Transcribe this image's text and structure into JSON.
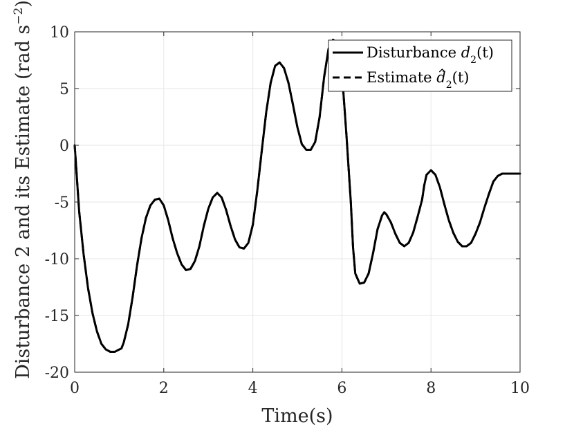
{
  "chart_data": {
    "type": "line",
    "xlabel": "Time(s)",
    "ylabel": "Disturbance 2 and its Estimate (rad s",
    "ylabel_sup": "−2",
    "ylabel_tail": ")",
    "xlim": [
      0,
      10
    ],
    "ylim": [
      -20,
      10
    ],
    "xticks": [
      0,
      2,
      4,
      6,
      8,
      10
    ],
    "yticks": [
      -20,
      -15,
      -10,
      -5,
      0,
      5,
      10
    ],
    "xtick_labels": [
      "0",
      "2",
      "4",
      "6",
      "8",
      "10"
    ],
    "ytick_labels": [
      "-20",
      "-15",
      "-10",
      "-5",
      "0",
      "5",
      "10"
    ],
    "grid": true,
    "legend_position": "top-right",
    "legend": [
      {
        "text": "Disturbance ",
        "sym": "d",
        "sub": "2",
        "tail": "(t)",
        "hat": false
      },
      {
        "text": "Estimate ",
        "sym": "d",
        "sub": "2",
        "tail": "(t)",
        "hat": true
      }
    ],
    "series": [
      {
        "name": "Disturbance d2(t)",
        "style": "solid",
        "color": "#000000",
        "x": [
          0,
          0.1,
          0.2,
          0.3,
          0.4,
          0.5,
          0.6,
          0.7,
          0.8,
          0.9,
          1.0,
          1.05,
          1.1,
          1.2,
          1.3,
          1.4,
          1.5,
          1.6,
          1.7,
          1.8,
          1.9,
          2.0,
          2.1,
          2.2,
          2.3,
          2.4,
          2.5,
          2.6,
          2.7,
          2.8,
          2.9,
          3.0,
          3.1,
          3.2,
          3.3,
          3.4,
          3.5,
          3.6,
          3.7,
          3.8,
          3.9,
          4.0,
          4.1,
          4.2,
          4.3,
          4.4,
          4.5,
          4.6,
          4.7,
          4.8,
          4.9,
          5.0,
          5.1,
          5.2,
          5.3,
          5.4,
          5.5,
          5.6,
          5.7,
          5.8,
          5.9,
          6.0,
          6.1,
          6.2,
          6.25,
          6.3,
          6.4,
          6.5,
          6.6,
          6.7,
          6.8,
          6.9,
          6.95,
          7.0,
          7.1,
          7.2,
          7.3,
          7.4,
          7.5,
          7.6,
          7.7,
          7.8,
          7.85,
          7.9,
          8.0,
          8.1,
          8.2,
          8.3,
          8.4,
          8.5,
          8.6,
          8.7,
          8.8,
          8.9,
          9.0,
          9.1,
          9.2,
          9.3,
          9.4,
          9.5,
          9.6,
          9.7,
          9.8,
          9.9,
          10.0
        ],
        "y": [
          0,
          -5.8,
          -9.6,
          -12.6,
          -14.8,
          -16.4,
          -17.5,
          -18.0,
          -18.2,
          -18.2,
          -18.0,
          -17.9,
          -17.4,
          -15.8,
          -13.4,
          -10.6,
          -8.2,
          -6.4,
          -5.3,
          -4.8,
          -4.7,
          -5.3,
          -6.6,
          -8.2,
          -9.5,
          -10.5,
          -11.0,
          -10.9,
          -10.2,
          -8.9,
          -7.1,
          -5.6,
          -4.6,
          -4.2,
          -4.6,
          -5.7,
          -7.1,
          -8.3,
          -9.0,
          -9.1,
          -8.6,
          -7.0,
          -4.0,
          -0.5,
          2.9,
          5.5,
          7.0,
          7.3,
          6.8,
          5.5,
          3.6,
          1.6,
          0.1,
          -0.4,
          -0.4,
          0.3,
          2.5,
          6.0,
          8.5,
          9.3,
          9.0,
          6.5,
          1.0,
          -5.0,
          -9.0,
          -11.3,
          -12.2,
          -12.1,
          -11.3,
          -9.5,
          -7.4,
          -6.2,
          -5.9,
          -6.1,
          -6.8,
          -7.8,
          -8.6,
          -8.9,
          -8.6,
          -7.7,
          -6.3,
          -4.8,
          -3.5,
          -2.6,
          -2.2,
          -2.6,
          -3.7,
          -5.2,
          -6.6,
          -7.7,
          -8.5,
          -8.9,
          -8.9,
          -8.6,
          -7.8,
          -6.8,
          -5.5,
          -4.3,
          -3.2,
          -2.7,
          -2.5,
          -2.5,
          -2.5,
          -2.5,
          -2.5
        ]
      },
      {
        "name": "Estimate d̂2(t)",
        "style": "dashed",
        "color": "#000000",
        "x": [
          0,
          0.1,
          0.2,
          0.3,
          0.4,
          0.5,
          0.6,
          0.7,
          0.8,
          0.9,
          1.0,
          1.05,
          1.1,
          1.2,
          1.3,
          1.4,
          1.5,
          1.6,
          1.7,
          1.8,
          1.9,
          2.0,
          2.1,
          2.2,
          2.3,
          2.4,
          2.5,
          2.6,
          2.7,
          2.8,
          2.9,
          3.0,
          3.1,
          3.2,
          3.3,
          3.4,
          3.5,
          3.6,
          3.7,
          3.8,
          3.9,
          4.0,
          4.1,
          4.2,
          4.3,
          4.4,
          4.5,
          4.6,
          4.7,
          4.8,
          4.9,
          5.0,
          5.1,
          5.2,
          5.3,
          5.4,
          5.5,
          5.6,
          5.7,
          5.8,
          5.9,
          6.0,
          6.1,
          6.2,
          6.25,
          6.3,
          6.4,
          6.5,
          6.6,
          6.7,
          6.8,
          6.9,
          6.95,
          7.0,
          7.1,
          7.2,
          7.3,
          7.4,
          7.5,
          7.6,
          7.7,
          7.8,
          7.85,
          7.9,
          8.0,
          8.1,
          8.2,
          8.3,
          8.4,
          8.5,
          8.6,
          8.7,
          8.8,
          8.9,
          9.0,
          9.1,
          9.2,
          9.3,
          9.4,
          9.5,
          9.6,
          9.7,
          9.8,
          9.9,
          10.0
        ],
        "y": [
          0,
          -5.8,
          -9.6,
          -12.6,
          -14.8,
          -16.4,
          -17.5,
          -18.0,
          -18.2,
          -18.2,
          -18.0,
          -17.9,
          -17.4,
          -15.8,
          -13.4,
          -10.6,
          -8.2,
          -6.4,
          -5.3,
          -4.8,
          -4.7,
          -5.3,
          -6.6,
          -8.2,
          -9.5,
          -10.5,
          -11.0,
          -10.9,
          -10.2,
          -8.9,
          -7.1,
          -5.6,
          -4.6,
          -4.2,
          -4.6,
          -5.7,
          -7.1,
          -8.3,
          -9.0,
          -9.1,
          -8.6,
          -7.0,
          -4.0,
          -0.5,
          2.9,
          5.5,
          7.0,
          7.3,
          6.8,
          5.5,
          3.6,
          1.6,
          0.1,
          -0.4,
          -0.4,
          0.3,
          2.5,
          6.0,
          8.5,
          9.3,
          9.0,
          6.5,
          1.0,
          -5.0,
          -9.0,
          -11.3,
          -12.2,
          -12.1,
          -11.3,
          -9.5,
          -7.4,
          -6.2,
          -5.9,
          -6.1,
          -6.8,
          -7.8,
          -8.6,
          -8.9,
          -8.6,
          -7.7,
          -6.3,
          -4.8,
          -3.5,
          -2.6,
          -2.2,
          -2.6,
          -3.7,
          -5.2,
          -6.6,
          -7.7,
          -8.5,
          -8.9,
          -8.9,
          -8.6,
          -7.8,
          -6.8,
          -5.5,
          -4.3,
          -3.2,
          -2.7,
          -2.5,
          -2.5,
          -2.5,
          -2.5,
          -2.5
        ]
      }
    ]
  }
}
